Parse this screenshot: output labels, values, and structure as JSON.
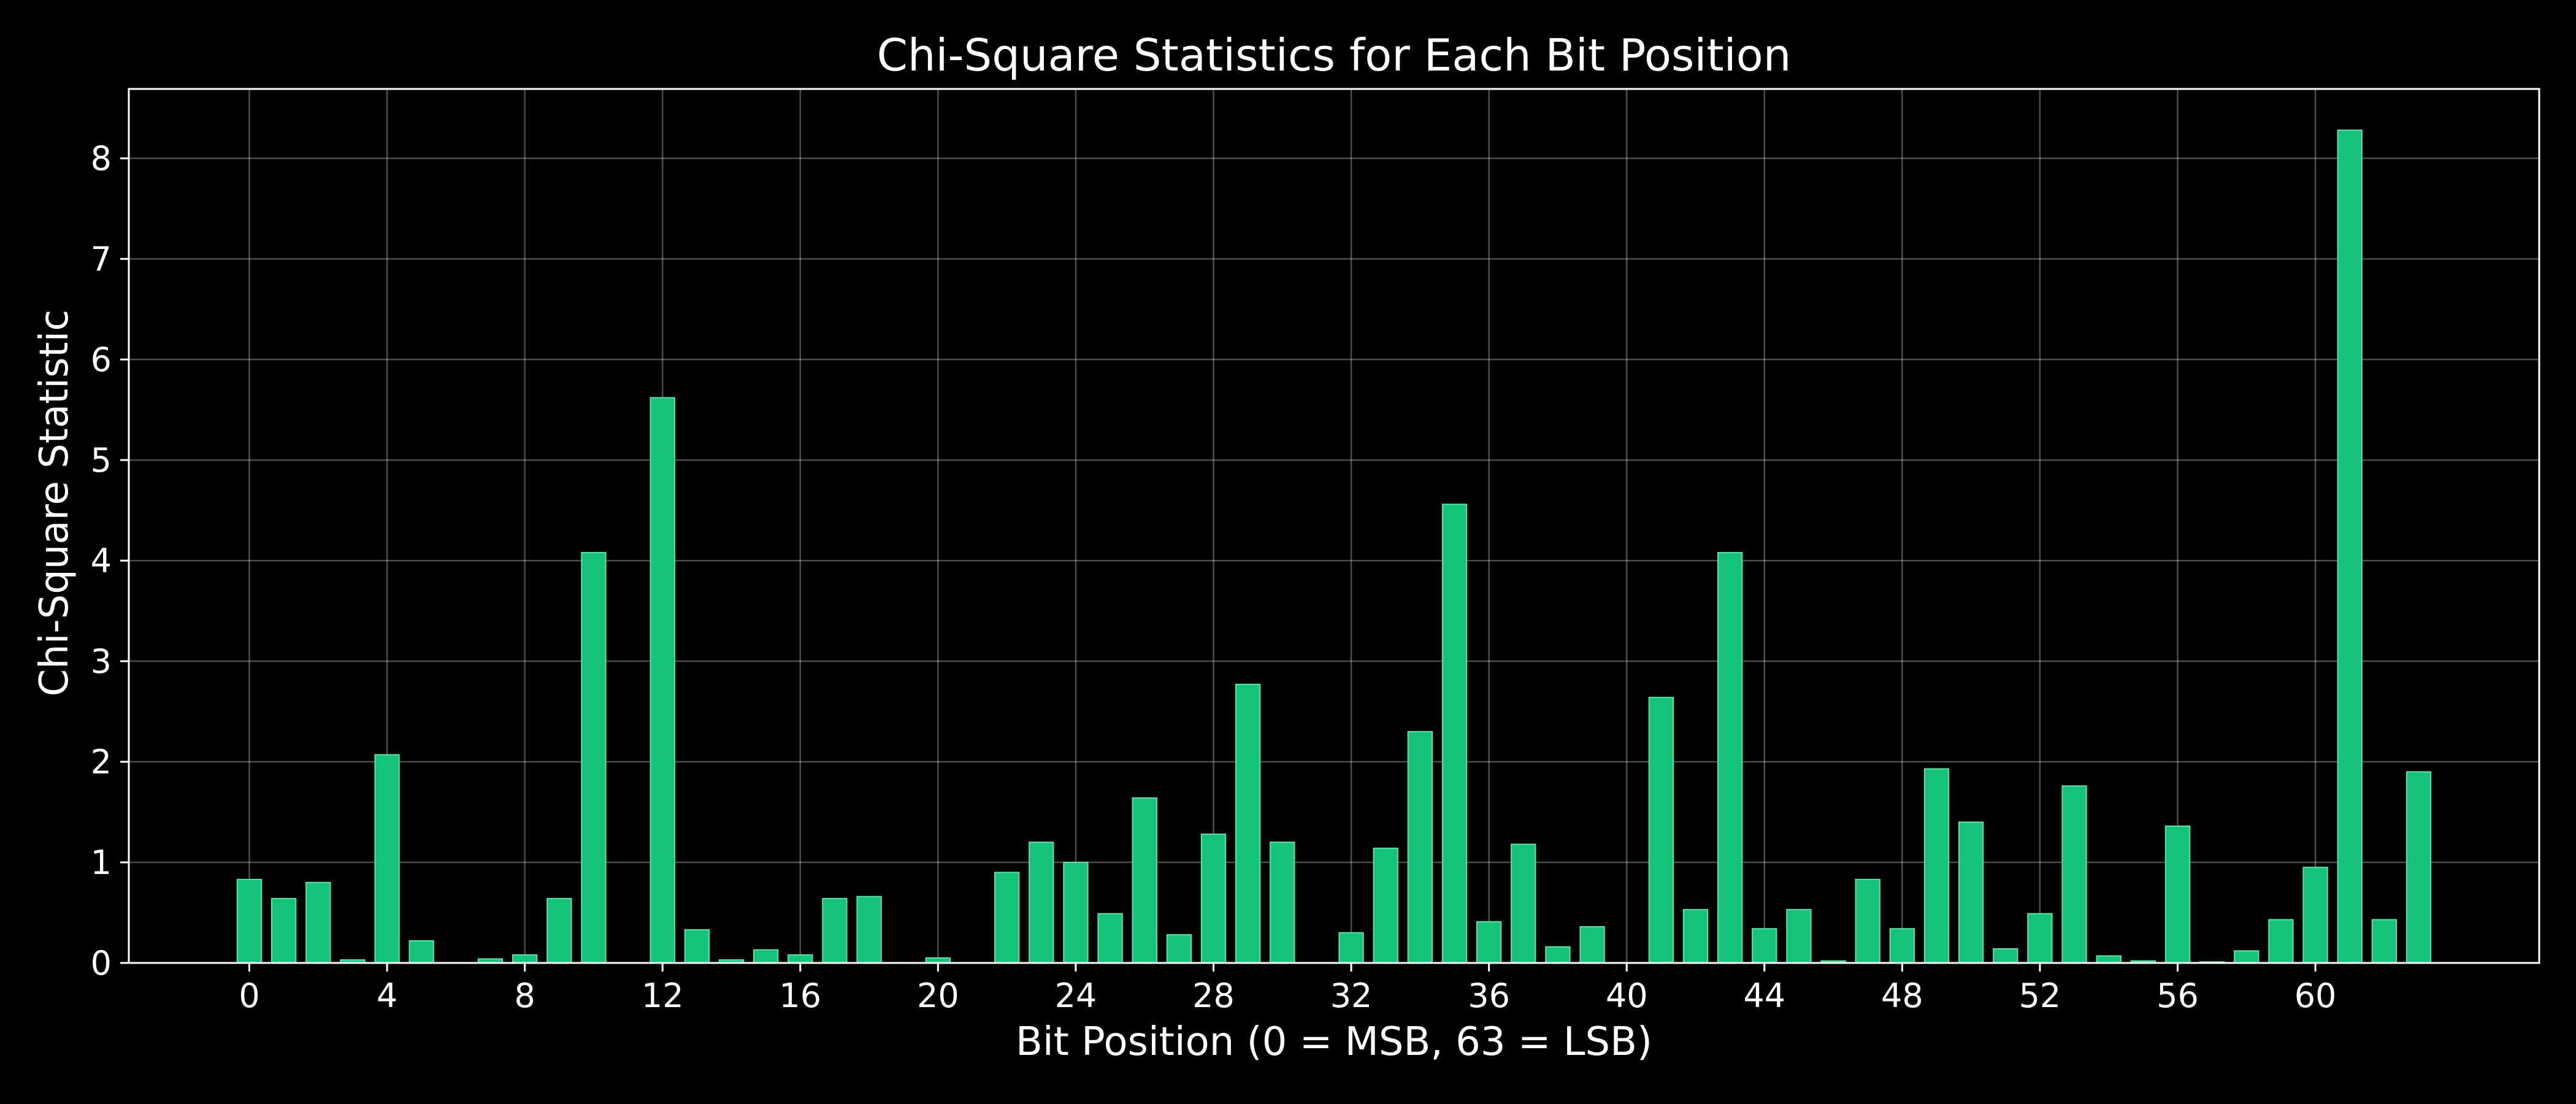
{
  "chart_data": {
    "type": "bar",
    "title": "Chi-Square Statistics for Each Bit Position",
    "xlabel": "Bit Position (0 = MSB, 63 = LSB)",
    "ylabel": "Chi-Square Statistic",
    "x": [
      0,
      1,
      2,
      3,
      4,
      5,
      6,
      7,
      8,
      9,
      10,
      11,
      12,
      13,
      14,
      15,
      16,
      17,
      18,
      19,
      20,
      21,
      22,
      23,
      24,
      25,
      26,
      27,
      28,
      29,
      30,
      31,
      32,
      33,
      34,
      35,
      36,
      37,
      38,
      39,
      40,
      41,
      42,
      43,
      44,
      45,
      46,
      47,
      48,
      49,
      50,
      51,
      52,
      53,
      54,
      55,
      56,
      57,
      58,
      59,
      60,
      61,
      62,
      63
    ],
    "values": [
      0.83,
      0.64,
      0.8,
      0.03,
      2.07,
      0.22,
      0.0,
      0.04,
      0.08,
      0.64,
      4.08,
      0.0,
      5.62,
      0.33,
      0.03,
      0.13,
      0.08,
      0.64,
      0.66,
      0.0,
      0.05,
      0.0,
      0.9,
      1.2,
      1.0,
      0.49,
      1.64,
      0.28,
      1.28,
      2.77,
      1.2,
      0.0,
      0.3,
      1.14,
      2.3,
      4.56,
      0.41,
      1.18,
      0.16,
      0.36,
      0.0,
      2.64,
      0.53,
      4.08,
      0.34,
      0.53,
      0.02,
      0.83,
      0.34,
      1.93,
      1.4,
      0.14,
      0.49,
      1.76,
      0.07,
      0.02,
      1.36,
      0.01,
      0.12,
      0.43,
      0.95,
      8.28,
      0.43,
      1.9
    ],
    "xticks": [
      0,
      4,
      8,
      12,
      16,
      20,
      24,
      28,
      32,
      36,
      40,
      44,
      48,
      52,
      56,
      60
    ],
    "yticks": [
      0,
      1,
      2,
      3,
      4,
      5,
      6,
      7,
      8
    ],
    "xlim": [
      -3.5,
      66.5
    ],
    "ylim": [
      0,
      8.69
    ],
    "grid": true,
    "colors": {
      "background": "#000000",
      "bar": "#15c27a",
      "bar_edge": "#5ee0a6",
      "text": "#ffffff",
      "grid": "#ffffff"
    }
  }
}
